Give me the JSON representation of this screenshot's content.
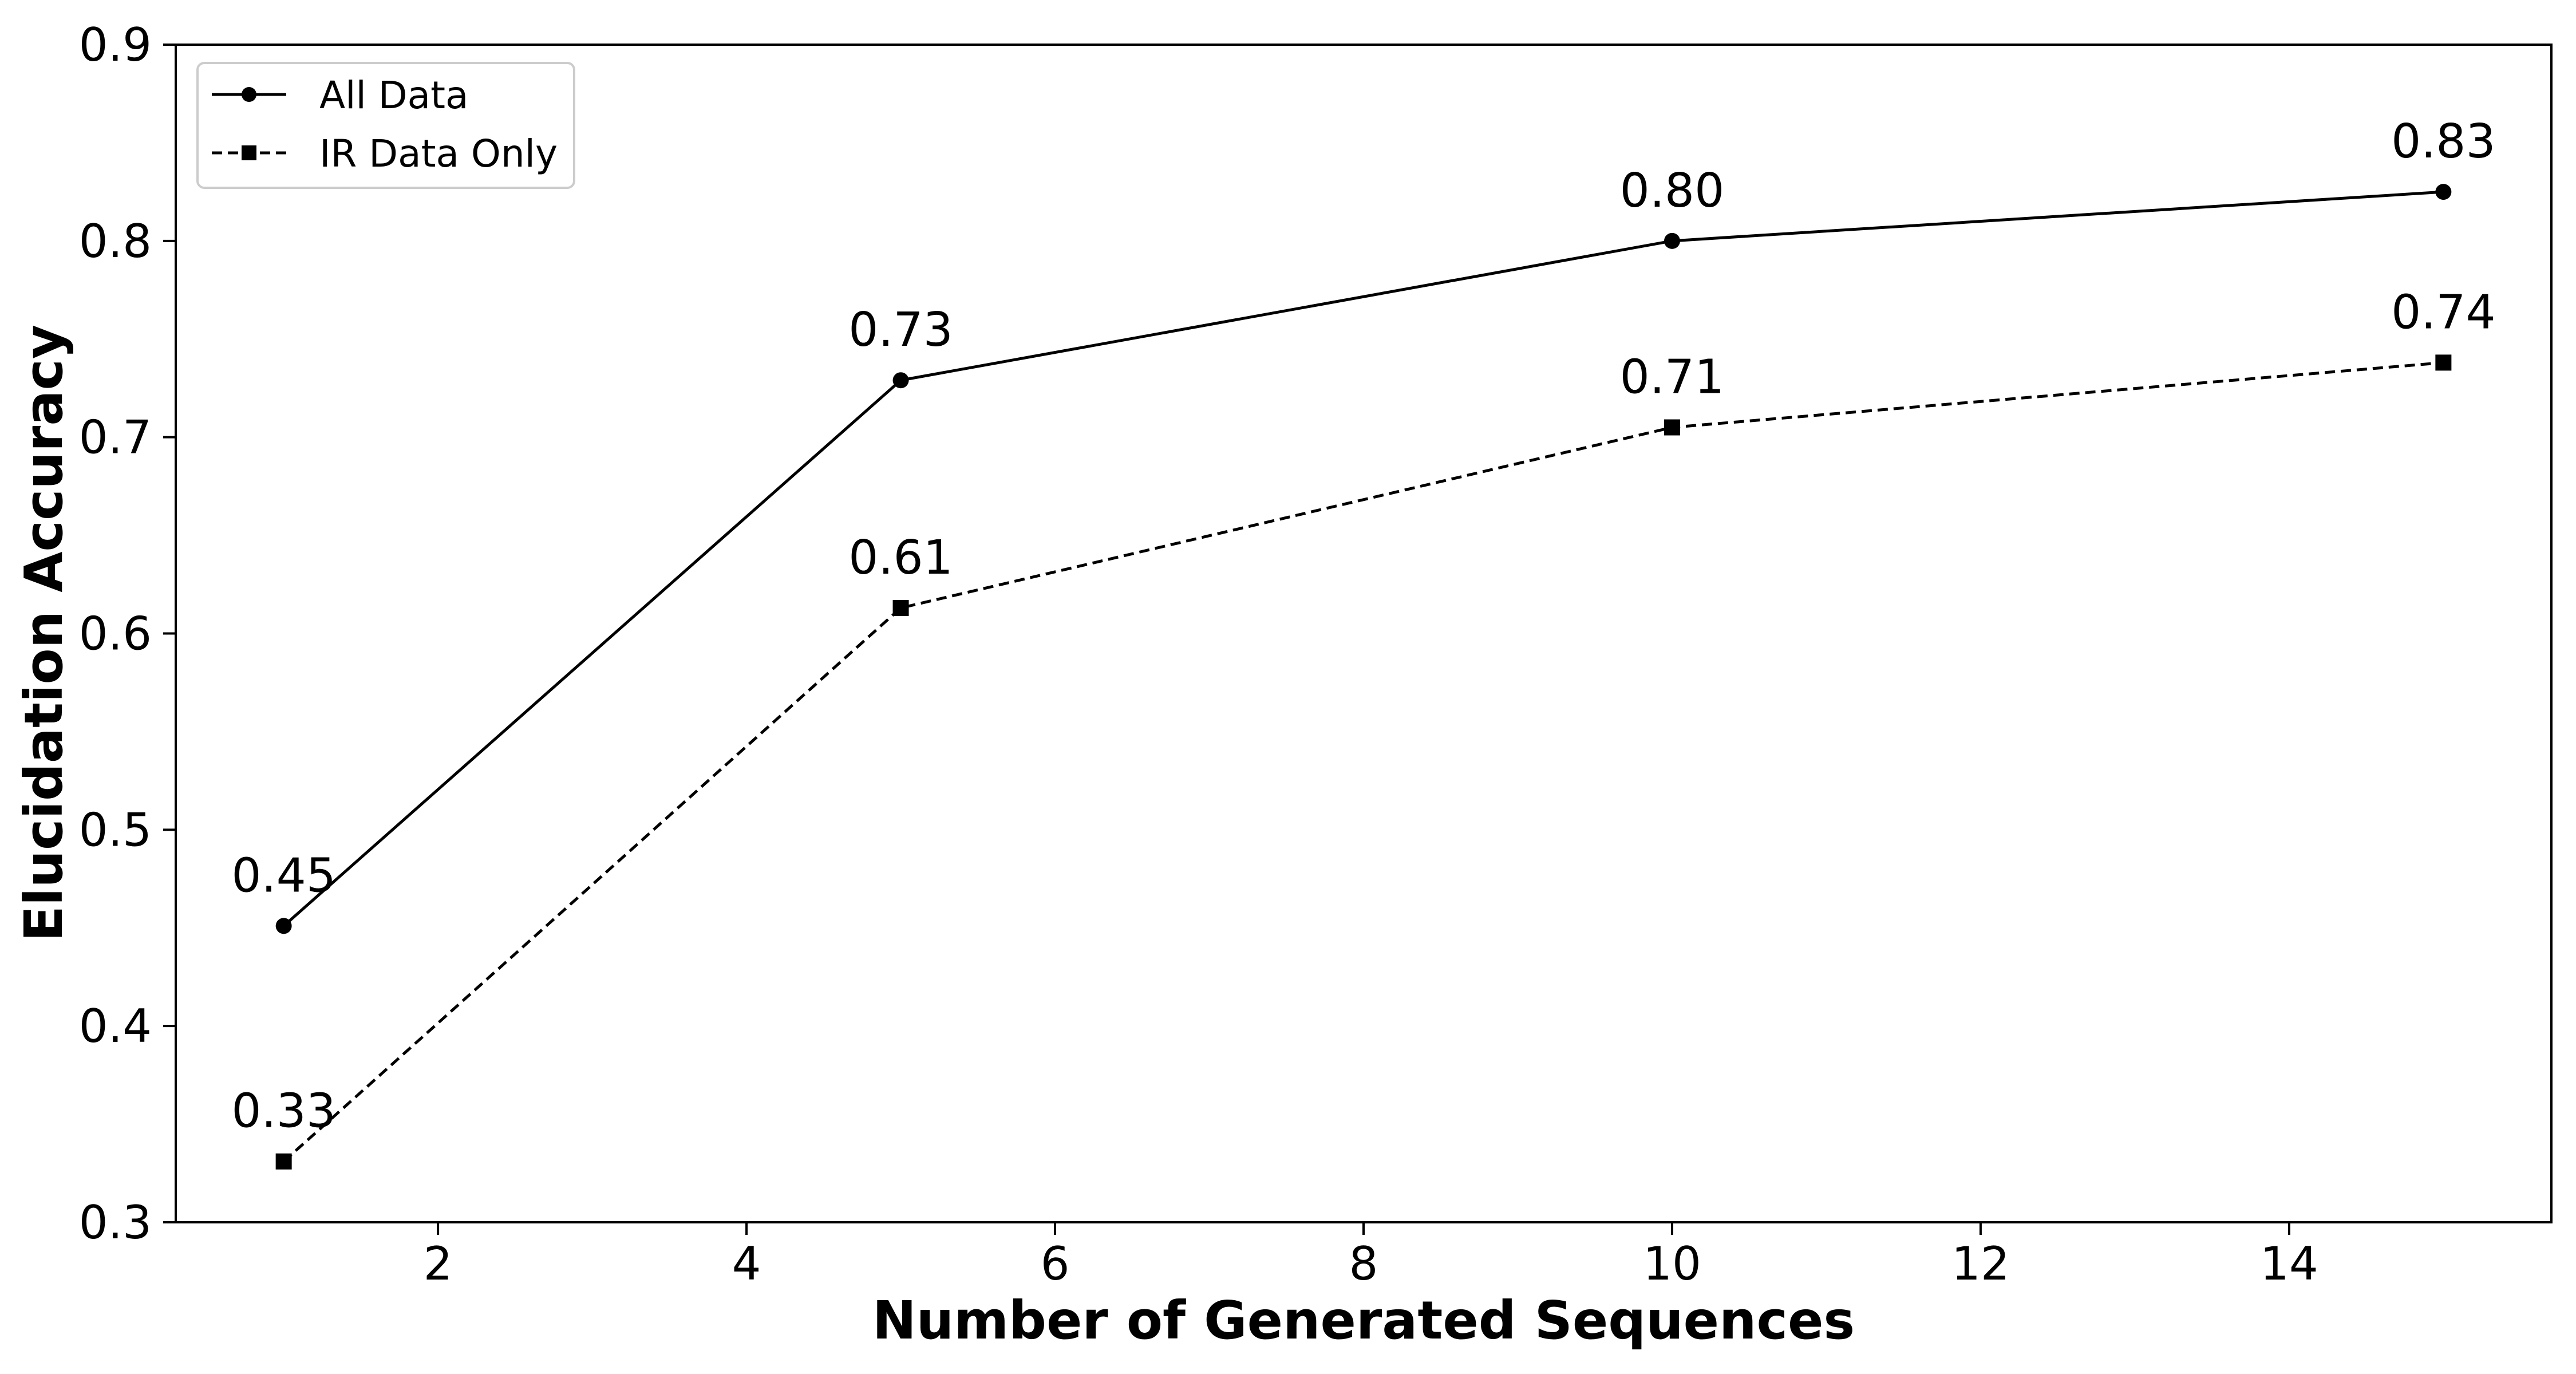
{
  "chart_data": {
    "type": "line",
    "title": "",
    "xlabel": "Number of Generated Sequences",
    "ylabel": "Elucidation Accuracy",
    "xlim": [
      0.3,
      15.7
    ],
    "ylim": [
      0.3,
      0.9
    ],
    "xticks": [
      2,
      4,
      6,
      8,
      10,
      12,
      14
    ],
    "xtick_labels": [
      "2",
      "4",
      "6",
      "8",
      "10",
      "12",
      "14"
    ],
    "yticks": [
      0.3,
      0.4,
      0.5,
      0.6,
      0.7,
      0.8,
      0.9
    ],
    "ytick_labels": [
      "0.3",
      "0.4",
      "0.5",
      "0.6",
      "0.7",
      "0.8",
      "0.9"
    ],
    "grid": false,
    "legend_position": "top-left",
    "x": [
      1,
      5,
      10,
      15
    ],
    "series": [
      {
        "name": "All Data",
        "values": [
          0.451,
          0.729,
          0.8,
          0.825
        ],
        "labels": [
          "0.45",
          "0.73",
          "0.80",
          "0.83"
        ],
        "marker": "circle",
        "line_style": "solid",
        "color": "#000000"
      },
      {
        "name": "IR Data Only",
        "values": [
          0.331,
          0.613,
          0.705,
          0.738
        ],
        "labels": [
          "0.33",
          "0.61",
          "0.71",
          "0.74"
        ],
        "marker": "square",
        "line_style": "dashed",
        "color": "#000000"
      }
    ]
  }
}
